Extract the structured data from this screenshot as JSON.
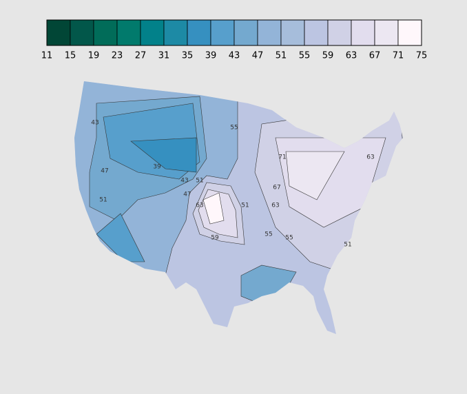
{
  "chart_data": {
    "type": "contour-map",
    "levels": [
      11,
      15,
      19,
      23,
      27,
      31,
      35,
      39,
      43,
      47,
      51,
      55,
      59,
      63,
      67,
      71,
      75
    ],
    "colors": [
      "#014636",
      "#02574a",
      "#016c59",
      "#017a6c",
      "#02818a",
      "#1d8aa5",
      "#3690c0",
      "#579fcc",
      "#74a9cf",
      "#93b4d8",
      "#a6bddb",
      "#bcc5e2",
      "#d0d1e6",
      "#e2ddee",
      "#ece7f2",
      "#fff7fb"
    ],
    "contour_labels": [
      43,
      39,
      47,
      51,
      43,
      47,
      51,
      55,
      59,
      63,
      55,
      51,
      71,
      67,
      63,
      55,
      51,
      63
    ]
  }
}
